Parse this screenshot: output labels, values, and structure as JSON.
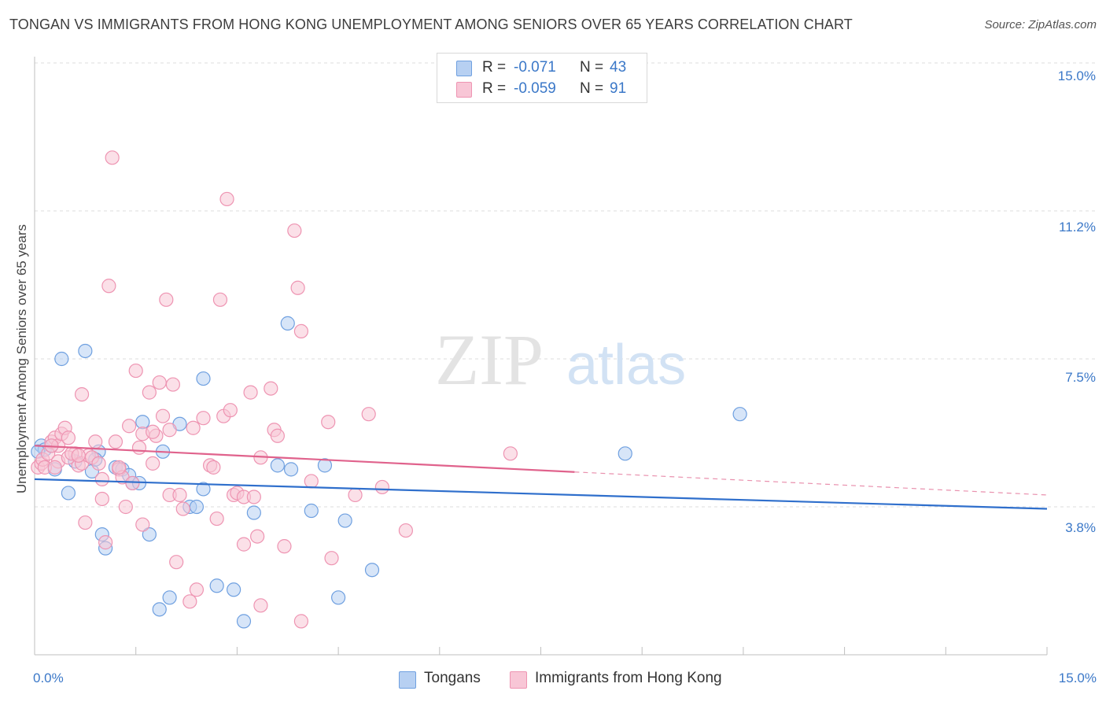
{
  "chart_data": {
    "type": "scatter",
    "title": "TONGAN VS IMMIGRANTS FROM HONG KONG UNEMPLOYMENT AMONG SENIORS OVER 65 YEARS CORRELATION CHART",
    "source": "Source: ZipAtlas.com",
    "watermark": {
      "zip": "ZIP",
      "atlas": "atlas"
    },
    "xlabel": "",
    "ylabel": "Unemployment Among Seniors over 65 years",
    "xlim": [
      0,
      15
    ],
    "ylim": [
      0,
      15
    ],
    "x_tick_labels": [
      "0.0%",
      "15.0%"
    ],
    "y_ticks": [
      {
        "value": 3.75,
        "label": "3.8%"
      },
      {
        "value": 7.5,
        "label": "7.5%"
      },
      {
        "value": 11.25,
        "label": "11.2%"
      },
      {
        "value": 15.0,
        "label": "15.0%"
      }
    ],
    "legend_stats": [
      {
        "r_label": "R =",
        "r": "-0.071",
        "n_label": "N =",
        "n": "43"
      },
      {
        "r_label": "R =",
        "r": "-0.059",
        "n_label": "N =",
        "n": "91"
      }
    ],
    "series": [
      {
        "name": "Tongans",
        "color": "#6fa0e0",
        "fill": "#b7d0f2",
        "line_color": "#2f6fcc",
        "trend": {
          "x0": 0.0,
          "y0": 4.45,
          "x1": 15.0,
          "y1": 3.7,
          "dash_from": null
        },
        "points": [
          [
            0.1,
            5.3
          ],
          [
            0.15,
            5.2
          ],
          [
            0.25,
            5.3
          ],
          [
            0.3,
            4.7
          ],
          [
            0.5,
            4.1
          ],
          [
            0.4,
            7.5
          ],
          [
            0.75,
            7.7
          ],
          [
            0.85,
            4.65
          ],
          [
            0.95,
            5.15
          ],
          [
            0.9,
            4.95
          ],
          [
            1.0,
            3.05
          ],
          [
            1.05,
            2.7
          ],
          [
            1.2,
            4.75
          ],
          [
            1.3,
            4.7
          ],
          [
            1.4,
            4.55
          ],
          [
            1.45,
            4.35
          ],
          [
            1.55,
            4.35
          ],
          [
            1.6,
            5.9
          ],
          [
            1.7,
            3.05
          ],
          [
            1.9,
            5.15
          ],
          [
            1.85,
            1.15
          ],
          [
            2.0,
            1.45
          ],
          [
            2.15,
            5.85
          ],
          [
            2.3,
            3.75
          ],
          [
            2.4,
            3.75
          ],
          [
            2.5,
            4.2
          ],
          [
            2.5,
            7.0
          ],
          [
            2.7,
            1.75
          ],
          [
            2.95,
            1.65
          ],
          [
            3.1,
            0.85
          ],
          [
            3.25,
            3.6
          ],
          [
            3.6,
            4.8
          ],
          [
            3.8,
            4.7
          ],
          [
            3.75,
            8.4
          ],
          [
            4.1,
            3.65
          ],
          [
            4.3,
            4.8
          ],
          [
            4.5,
            1.45
          ],
          [
            4.6,
            3.4
          ],
          [
            5.0,
            2.15
          ],
          [
            8.75,
            5.1
          ],
          [
            10.45,
            6.1
          ],
          [
            0.05,
            5.15
          ],
          [
            0.6,
            4.9
          ]
        ]
      },
      {
        "name": "Immigrants from Hong Kong",
        "color": "#ee94b2",
        "fill": "#f8c6d6",
        "line_color": "#e0628c",
        "trend": {
          "x0": 0.0,
          "y0": 5.3,
          "x1": 15.0,
          "y1": 4.05,
          "dash_from": 8.0
        },
        "points": [
          [
            0.05,
            4.75
          ],
          [
            0.1,
            4.85
          ],
          [
            0.12,
            4.95
          ],
          [
            0.15,
            4.75
          ],
          [
            0.2,
            5.1
          ],
          [
            0.25,
            5.4
          ],
          [
            0.3,
            5.5
          ],
          [
            0.35,
            4.9
          ],
          [
            0.35,
            5.3
          ],
          [
            0.4,
            5.6
          ],
          [
            0.45,
            5.75
          ],
          [
            0.5,
            5.5
          ],
          [
            0.6,
            5.1
          ],
          [
            0.65,
            4.8
          ],
          [
            0.7,
            4.85
          ],
          [
            0.7,
            6.6
          ],
          [
            0.75,
            3.35
          ],
          [
            0.8,
            5.05
          ],
          [
            0.85,
            5.0
          ],
          [
            0.9,
            5.4
          ],
          [
            0.95,
            4.85
          ],
          [
            1.0,
            4.45
          ],
          [
            1.0,
            3.95
          ],
          [
            1.05,
            2.85
          ],
          [
            1.1,
            9.35
          ],
          [
            1.15,
            12.6
          ],
          [
            1.2,
            5.4
          ],
          [
            1.25,
            4.7
          ],
          [
            1.3,
            4.5
          ],
          [
            1.35,
            3.75
          ],
          [
            1.4,
            5.8
          ],
          [
            1.45,
            4.35
          ],
          [
            1.5,
            7.2
          ],
          [
            1.55,
            5.25
          ],
          [
            1.6,
            3.3
          ],
          [
            1.6,
            5.6
          ],
          [
            1.7,
            6.65
          ],
          [
            1.75,
            4.85
          ],
          [
            1.8,
            5.55
          ],
          [
            1.85,
            6.9
          ],
          [
            1.9,
            6.05
          ],
          [
            1.95,
            9.0
          ],
          [
            2.0,
            4.05
          ],
          [
            2.05,
            6.85
          ],
          [
            2.1,
            2.35
          ],
          [
            2.15,
            4.05
          ],
          [
            2.2,
            3.7
          ],
          [
            2.3,
            1.35
          ],
          [
            2.35,
            5.75
          ],
          [
            2.4,
            1.65
          ],
          [
            2.5,
            6.0
          ],
          [
            2.6,
            4.8
          ],
          [
            2.65,
            4.75
          ],
          [
            2.7,
            3.45
          ],
          [
            2.75,
            9.0
          ],
          [
            2.8,
            6.05
          ],
          [
            2.85,
            11.55
          ],
          [
            2.9,
            6.2
          ],
          [
            2.95,
            4.05
          ],
          [
            3.0,
            4.1
          ],
          [
            3.1,
            4.0
          ],
          [
            3.1,
            2.8
          ],
          [
            3.2,
            6.65
          ],
          [
            3.25,
            4.0
          ],
          [
            3.3,
            3.0
          ],
          [
            3.35,
            5.0
          ],
          [
            3.35,
            1.25
          ],
          [
            3.5,
            6.75
          ],
          [
            3.55,
            5.7
          ],
          [
            3.6,
            5.55
          ],
          [
            3.7,
            2.75
          ],
          [
            3.85,
            10.75
          ],
          [
            3.9,
            9.3
          ],
          [
            3.95,
            8.2
          ],
          [
            3.95,
            0.85
          ],
          [
            4.1,
            4.4
          ],
          [
            4.35,
            5.9
          ],
          [
            4.4,
            2.45
          ],
          [
            4.75,
            4.05
          ],
          [
            4.95,
            6.1
          ],
          [
            5.15,
            4.25
          ],
          [
            5.5,
            3.15
          ],
          [
            7.05,
            5.1
          ],
          [
            0.3,
            4.75
          ],
          [
            0.5,
            5.0
          ],
          [
            0.25,
            5.3
          ],
          [
            0.55,
            5.1
          ],
          [
            0.65,
            5.05
          ],
          [
            1.25,
            4.75
          ],
          [
            1.75,
            5.65
          ],
          [
            2.0,
            5.7
          ]
        ]
      }
    ]
  }
}
